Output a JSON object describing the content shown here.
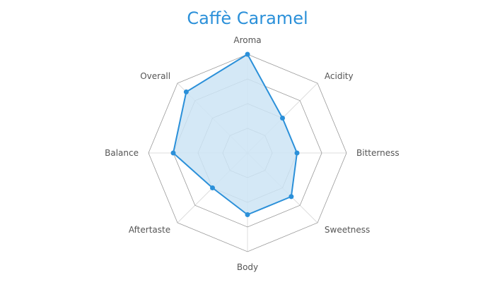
{
  "chart_data": {
    "type": "radar",
    "title": "Caffè Caramel",
    "categories": [
      "Aroma",
      "Acidity",
      "Bitterness",
      "Sweetness",
      "Body",
      "Aftertaste",
      "Balance",
      "Overall"
    ],
    "series": [
      {
        "values": [
          4,
          2,
          2,
          2.5,
          2.5,
          2,
          3,
          3.5
        ],
        "color": "#2b90d9",
        "fill": "#cde4f5"
      }
    ],
    "rlim": [
      0,
      4
    ],
    "ring_count": 4,
    "grid": true,
    "grid_color": "#999999"
  }
}
